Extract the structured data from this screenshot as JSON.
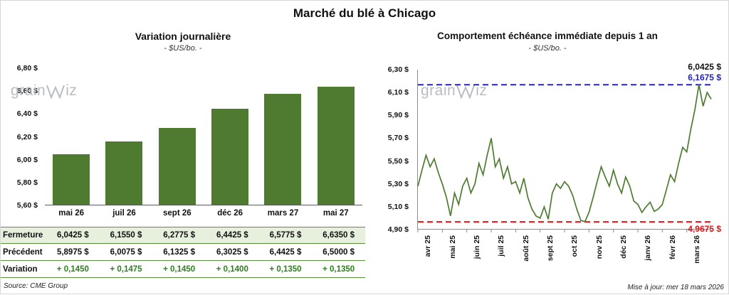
{
  "header": {
    "title": "Marché du blé à Chicago"
  },
  "watermark": {
    "text_left": "grain",
    "text_right": "iz"
  },
  "left_chart": {
    "title": "Variation journalière",
    "subtitle": "- $US/bo. -",
    "source": "Source: CME Group"
  },
  "right_chart": {
    "title": "Comportement échéance immédiate depuis 1 an",
    "subtitle": "- $US/bo. -",
    "updated": "Mise à jour: mer 18 mars 2026",
    "last_label": "6,0425 $",
    "high_label": "6,1675 $",
    "low_label": "4,9675 $"
  },
  "table": {
    "columns": [
      "mai 26",
      "juil 26",
      "sept 26",
      "déc 26",
      "mars 27",
      "mai 27"
    ],
    "rows": [
      {
        "label": "Fermeture",
        "values": [
          "6,0425 $",
          "6,1550 $",
          "6,2775 $",
          "6,4425 $",
          "6,5775 $",
          "6,6350 $"
        ]
      },
      {
        "label": "Précédent",
        "values": [
          "5,8975 $",
          "6,0075 $",
          "6,1325 $",
          "6,3025 $",
          "6,4425 $",
          "6,5000 $"
        ]
      },
      {
        "label": "Variation",
        "values": [
          "+ 0,1450",
          "+ 0,1475",
          "+ 0,1450",
          "+ 0,1400",
          "+ 0,1350",
          "+ 0,1350"
        ]
      }
    ]
  },
  "colors": {
    "bar": "#4e7b2f",
    "line": "#4e7b2f",
    "high_line": "#2323c8",
    "low_line": "#ee1111",
    "table_border": "#5a8f3c",
    "fermeture_bg": "#e7f0dc",
    "variation_text": "#2e7d1f"
  },
  "chart_data": [
    {
      "type": "bar",
      "title": "Variation journalière",
      "subtitle": "- $US/bo. -",
      "categories": [
        "mai 26",
        "juil 26",
        "sept 26",
        "déc 26",
        "mars 27",
        "mai 27"
      ],
      "values": [
        6.0425,
        6.155,
        6.2775,
        6.4425,
        6.5775,
        6.635
      ],
      "ylim": [
        5.6,
        6.8
      ],
      "ytick_step": 0.2,
      "ylabel": "$US/bo.",
      "grid": false,
      "legend": false
    },
    {
      "type": "line",
      "title": "Comportement échéance immédiate depuis 1 an",
      "subtitle": "- $US/bo. -",
      "x_labels": [
        "avr 25",
        "mai 25",
        "juin 25",
        "juil 25",
        "août 25",
        "sept 25",
        "oct 25",
        "nov 25",
        "déc 25",
        "janv 26",
        "févr 26",
        "mars 26"
      ],
      "ylim": [
        4.9,
        6.3
      ],
      "ytick_step": 0.2,
      "ylabel": "$US/bo.",
      "grid": false,
      "legend": false,
      "high_line": 6.1675,
      "low_line": 4.9675,
      "last_value": 6.0425,
      "values": [
        5.28,
        5.42,
        5.55,
        5.45,
        5.52,
        5.4,
        5.3,
        5.18,
        5.02,
        5.22,
        5.12,
        5.28,
        5.35,
        5.22,
        5.3,
        5.48,
        5.38,
        5.55,
        5.7,
        5.45,
        5.52,
        5.35,
        5.45,
        5.3,
        5.32,
        5.22,
        5.35,
        5.18,
        5.08,
        5.02,
        5.0,
        5.1,
        4.99,
        5.22,
        5.3,
        5.26,
        5.32,
        5.28,
        5.2,
        5.08,
        4.98,
        4.97,
        5.05,
        5.18,
        5.32,
        5.45,
        5.36,
        5.28,
        5.42,
        5.3,
        5.22,
        5.36,
        5.28,
        5.15,
        5.12,
        5.05,
        5.1,
        5.14,
        5.06,
        5.08,
        5.12,
        5.25,
        5.38,
        5.32,
        5.48,
        5.62,
        5.58,
        5.78,
        5.95,
        6.17,
        5.98,
        6.1,
        6.0425
      ]
    }
  ]
}
